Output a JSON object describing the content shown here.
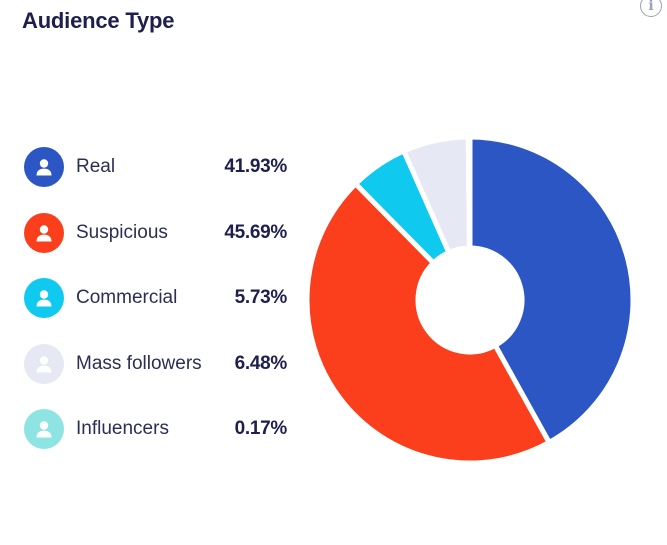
{
  "card": {
    "title": "Audience Type",
    "info_symbol": "i"
  },
  "colors": {
    "title": "#1d1f4d",
    "text": "#2b2e55"
  },
  "legend_items": [
    {
      "label": "Real",
      "value": "41.93%",
      "color": "#2b56c4",
      "icon_color": "#2b56c4",
      "icon": "user-icon"
    },
    {
      "label": "Suspicious",
      "value": "45.69%",
      "color": "#fb3f1d",
      "icon_color": "#fb3f1d",
      "icon": "user-icon"
    },
    {
      "label": "Commercial",
      "value": "5.73%",
      "color": "#0fc9ee",
      "icon_color": "#0fc9ee",
      "icon": "user-icon"
    },
    {
      "label": "Mass followers",
      "value": "6.48%",
      "color": "#e6e8f3",
      "icon_color": "#e6e8f3",
      "icon": "user-icon"
    },
    {
      "label": "Influencers",
      "value": "0.17%",
      "color": "#8ee4e2",
      "icon_color": "#8ee4e2",
      "icon": "user-icon"
    }
  ],
  "chart_data": {
    "type": "pie",
    "donut": true,
    "title": "Audience Type",
    "categories": [
      "Real",
      "Suspicious",
      "Commercial",
      "Mass followers",
      "Influencers"
    ],
    "values": [
      41.93,
      45.69,
      5.73,
      6.48,
      0.17
    ],
    "unit": "%",
    "colors": [
      "#2b56c4",
      "#fb3f1d",
      "#0fc9ee",
      "#e6e8f3",
      "#8ee4e2"
    ],
    "legend_position": "left"
  }
}
